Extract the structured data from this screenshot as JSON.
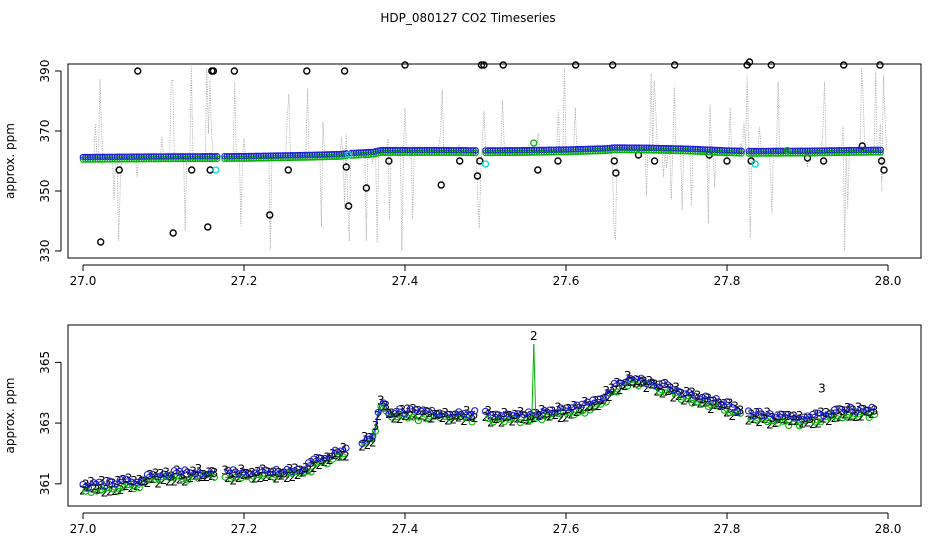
{
  "title": "HDP_080127  CO2 Timeseries",
  "colors": {
    "blue": "#1f1fd8",
    "green": "#00b400",
    "cyan": "#00d8d8",
    "black": "#000000",
    "raw": "#a8a8a8"
  },
  "chart_data": [
    {
      "type": "scatter",
      "ylabel": "approx. ppm",
      "xlim": [
        27.0,
        28.0
      ],
      "ylim": [
        330,
        390
      ],
      "xticks": [
        "27.0",
        "27.2",
        "27.4",
        "27.6",
        "27.8",
        "28.0"
      ],
      "yticks": [
        "330",
        "350",
        "370",
        "390"
      ],
      "baseline": {
        "x": [
          27.0,
          27.1,
          27.2,
          27.28,
          27.32,
          27.33,
          27.36,
          27.37,
          27.45,
          27.5,
          27.55,
          27.6,
          27.65,
          27.66,
          27.7,
          27.75,
          27.8,
          27.83,
          27.9,
          27.95,
          27.99
        ],
        "y": [
          361.3,
          361.5,
          361.6,
          362.0,
          362.3,
          362.6,
          363.0,
          363.6,
          363.6,
          363.5,
          363.6,
          363.8,
          364.2,
          364.5,
          364.4,
          364.1,
          363.5,
          363.3,
          363.4,
          363.6,
          363.7
        ]
      },
      "gaps": [
        [
          27.168,
          27.174
        ],
        [
          27.328,
          27.331
        ],
        [
          27.49,
          27.497
        ],
        [
          27.82,
          27.826
        ]
      ],
      "cyan_points": {
        "x": [
          27.165,
          27.33,
          27.5,
          27.835
        ],
        "y": [
          357,
          362,
          359,
          359
        ]
      },
      "green_points": {
        "x": [
          27.56,
          27.875
        ],
        "y": [
          366,
          363.5
        ]
      },
      "outliers": {
        "x": [
          27.022,
          27.045,
          27.068,
          27.112,
          27.135,
          27.155,
          27.158,
          27.16,
          27.162,
          27.188,
          27.232,
          27.255,
          27.278,
          27.325,
          27.327,
          27.33,
          27.352,
          27.38,
          27.4,
          27.445,
          27.468,
          27.49,
          27.493,
          27.495,
          27.498,
          27.522,
          27.565,
          27.59,
          27.612,
          27.658,
          27.66,
          27.662,
          27.69,
          27.71,
          27.735,
          27.778,
          27.8,
          27.825,
          27.828,
          27.83,
          27.855,
          27.9,
          27.92,
          27.945,
          27.968,
          27.99,
          27.992,
          27.995
        ],
        "y": [
          333,
          357,
          390,
          336,
          357,
          338,
          357,
          390,
          390,
          390,
          342,
          357,
          390,
          390,
          358,
          345,
          351,
          360,
          392,
          352,
          360,
          355,
          360,
          392,
          392,
          392,
          357,
          360,
          392,
          392,
          360,
          356,
          362,
          360,
          392,
          362,
          360,
          392,
          393,
          360,
          392,
          361,
          360,
          392,
          365,
          392,
          360,
          357
        ]
      }
    },
    {
      "type": "scatter",
      "ylabel": "approx. ppm",
      "xlim": [
        27.0,
        28.0
      ],
      "ylim": [
        360.5,
        366
      ],
      "xticks": [
        "27.0",
        "27.2",
        "27.4",
        "27.6",
        "27.8",
        "28.0"
      ],
      "yticks": [
        "361",
        "363",
        "365"
      ],
      "series": [
        {
          "name": "2",
          "color": "#00b400",
          "offset": -0.18
        },
        {
          "name": "3",
          "color": "#1f1fd8",
          "offset": 0.0
        }
      ],
      "baseline": {
        "x": [
          27.0,
          27.05,
          27.1,
          27.15,
          27.2,
          27.25,
          27.27,
          27.3,
          27.33,
          27.36,
          27.37,
          27.38,
          27.42,
          27.5,
          27.55,
          27.6,
          27.64,
          27.66,
          27.68,
          27.7,
          27.75,
          27.8,
          27.82,
          27.85,
          27.88,
          27.9,
          27.93,
          27.96,
          27.98
        ],
        "y": [
          360.95,
          361.05,
          361.3,
          361.4,
          361.4,
          361.45,
          361.5,
          361.9,
          362.2,
          362.6,
          363.7,
          363.4,
          363.35,
          363.3,
          363.3,
          363.45,
          363.7,
          364.2,
          364.5,
          364.4,
          364.0,
          363.6,
          363.35,
          363.25,
          363.2,
          363.2,
          363.35,
          363.45,
          363.45
        ]
      },
      "gaps": [
        [
          27.165,
          27.175
        ],
        [
          27.33,
          27.345
        ],
        [
          27.49,
          27.497
        ],
        [
          27.82,
          27.826
        ]
      ],
      "spike": {
        "x": 27.56,
        "y": 365.6,
        "label": "2"
      },
      "extra_label": {
        "x": 27.918,
        "y": 364.0,
        "label": "3"
      }
    }
  ]
}
